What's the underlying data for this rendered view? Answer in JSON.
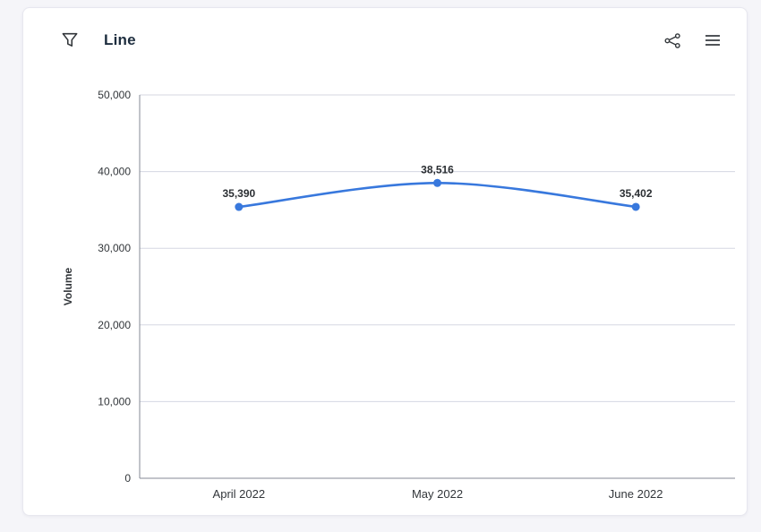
{
  "header": {
    "title": "Line"
  },
  "chart_data": {
    "type": "line",
    "title": "Line",
    "categories": [
      "April 2022",
      "May 2022",
      "June 2022"
    ],
    "series": [
      {
        "name": "Volume",
        "values": [
          35390,
          38516,
          35402
        ]
      }
    ],
    "point_labels": [
      "35,390",
      "38,516",
      "35,402"
    ],
    "xlabel": "",
    "ylabel": "Volume",
    "ylim": [
      0,
      50000
    ],
    "yticks": [
      0,
      10000,
      20000,
      30000,
      40000,
      50000
    ],
    "ytick_labels": [
      "0",
      "10,000",
      "20,000",
      "30,000",
      "40,000",
      "50,000"
    ],
    "grid": true,
    "legend": false,
    "colors": {
      "line": "#3878dd",
      "point": "#3878dd",
      "grid": "#d5d7e2",
      "axis": "#848a94",
      "tick_text": "#32363a",
      "point_label_text": "#2b2f33",
      "ylabel_text": "#32363a",
      "icon": "#32363a"
    }
  }
}
